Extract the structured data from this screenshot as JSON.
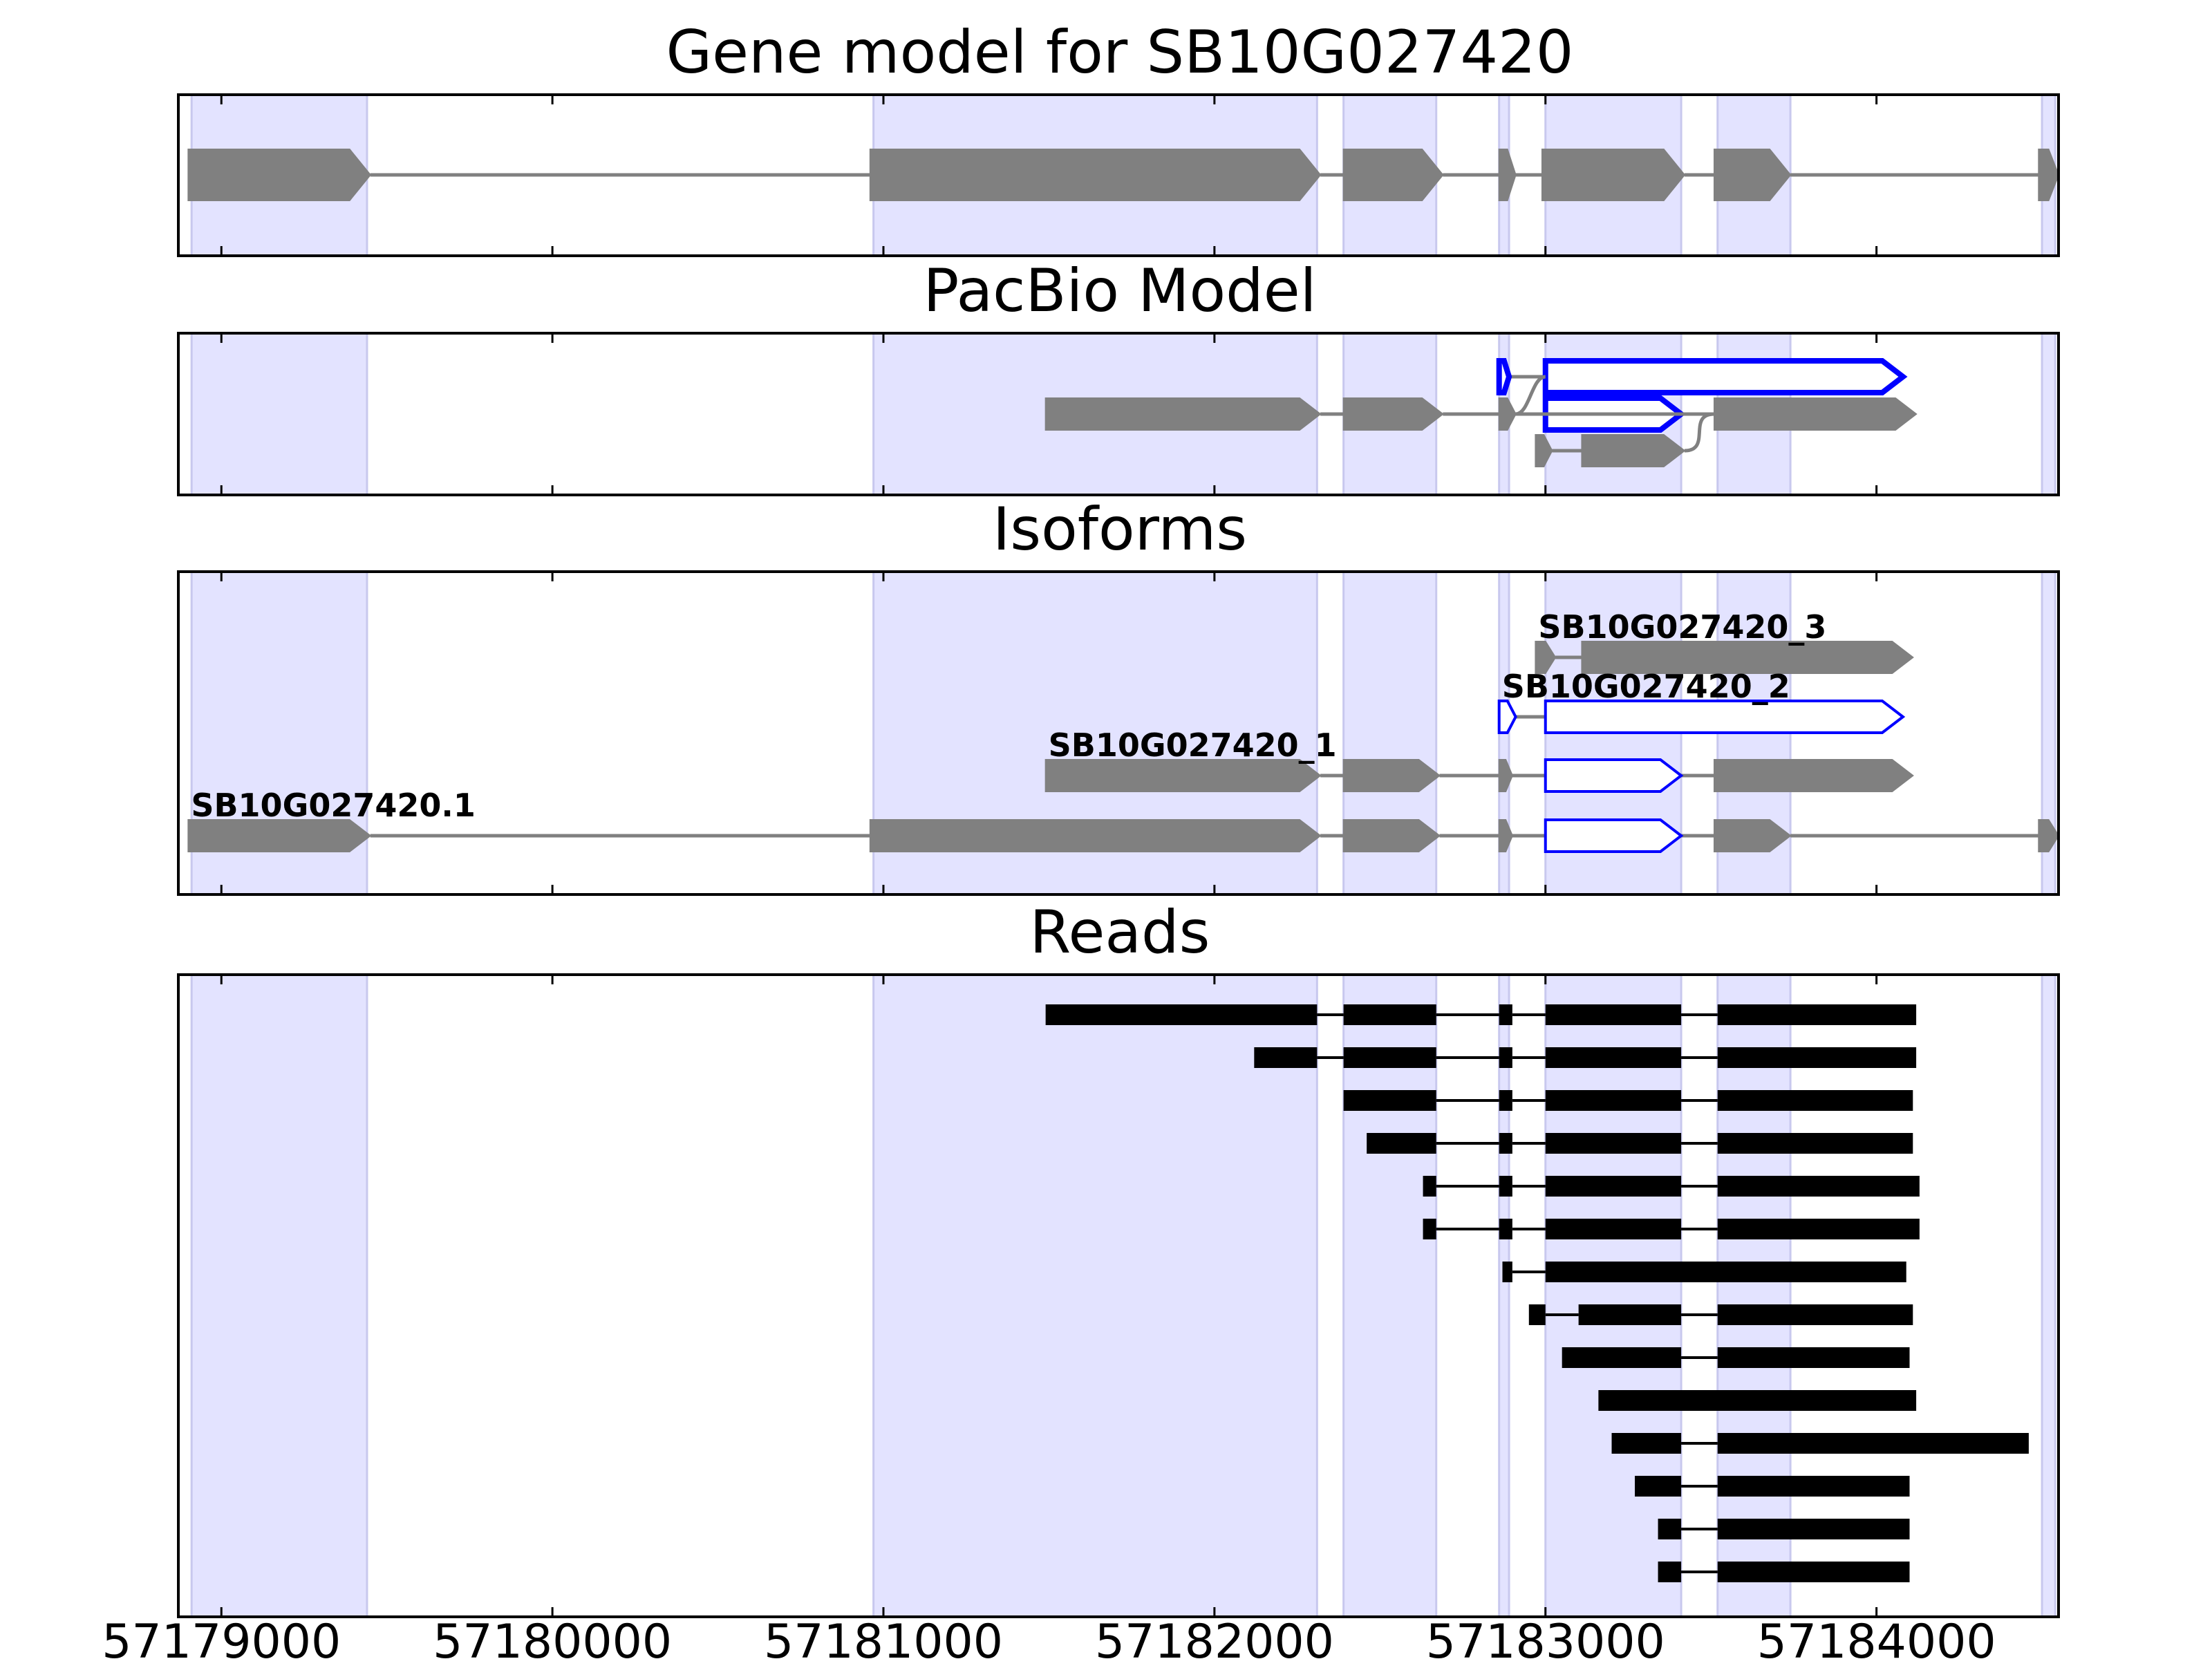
{
  "chart_data": {
    "type": "gene-track",
    "xlim": [
      57178870,
      57184550
    ],
    "x_ticks": [
      57179000,
      57180000,
      57181000,
      57182000,
      57183000,
      57184000
    ],
    "x_tick_labels": [
      "57179000",
      "57180000",
      "57181000",
      "57182000",
      "57183000",
      "57184000"
    ],
    "colors": {
      "shade": "#e3e3ff",
      "gene": "#808080",
      "highlight": "#0000ff",
      "read": "#000000"
    },
    "shaded_regions": [
      [
        57178910,
        57179440
      ],
      [
        57180970,
        57182310
      ],
      [
        57182390,
        57182670
      ],
      [
        57182860,
        57182890
      ],
      [
        57183000,
        57183410
      ],
      [
        57183520,
        57183740
      ],
      [
        57184500,
        57184540
      ]
    ],
    "panels": [
      {
        "title": "Gene model for SB10G027420",
        "rows": [
          {
            "label": "",
            "color": "gray",
            "fill": true,
            "exons": [
              [
                57178900,
                57179450
              ],
              [
                57180960,
                57182320
              ],
              [
                57182390,
                57182690
              ],
              [
                57182860,
                57182910
              ],
              [
                57182990,
                57183420
              ],
              [
                57183510,
                57183740
              ],
              [
                57184490,
                57184550
              ]
            ]
          }
        ]
      },
      {
        "title": "PacBio Model",
        "rows": [
          {
            "label": "",
            "color": "blue",
            "fill": false,
            "junction": "curve",
            "exons": [
              [
                57182860,
                57182890
              ],
              [
                57183000,
                57184080
              ]
            ]
          },
          {
            "label": "",
            "color": "blue",
            "fill": false,
            "exons": [
              [
                57183000,
                57183410
              ]
            ]
          },
          {
            "label": "",
            "color": "gray",
            "fill": true,
            "junction": "curve",
            "exons": [
              [
                57181490,
                57182320
              ],
              [
                57182390,
                57182690
              ],
              [
                57182860,
                57182910
              ],
              [
                57183510,
                57184120
              ]
            ]
          },
          {
            "label": "",
            "color": "gray",
            "fill": true,
            "junction": "curve",
            "exons": [
              [
                57182970,
                57183020
              ],
              [
                57183110,
                57183420
              ]
            ]
          }
        ]
      },
      {
        "title": "Isoforms",
        "rows": [
          {
            "label": "SB10G027420_3",
            "color": "gray",
            "fill": true,
            "exons": [
              [
                57182970,
                57183030
              ],
              [
                57183110,
                57184110
              ]
            ]
          },
          {
            "label": "SB10G027420_2",
            "color": "blue",
            "fill": false,
            "exons": [
              [
                57182860,
                57182910
              ],
              [
                57183000,
                57184080
              ]
            ]
          },
          {
            "label": "SB10G027420_1",
            "color": "mixed",
            "fill": true,
            "exons": [
              [
                57181490,
                57182320
              ],
              [
                57182390,
                57182680
              ],
              [
                57182860,
                57182900
              ],
              [
                57183000,
                57183410
              ],
              [
                57183510,
                57184110
              ]
            ],
            "blue_exons": [
              3
            ]
          },
          {
            "label": "SB10G027420.1",
            "color": "mixed",
            "fill": true,
            "exons": [
              [
                57178900,
                57179450
              ],
              [
                57180960,
                57182320
              ],
              [
                57182390,
                57182680
              ],
              [
                57182860,
                57182900
              ],
              [
                57183000,
                57183410
              ],
              [
                57183510,
                57183740
              ],
              [
                57184490,
                57184550
              ]
            ],
            "blue_exons": [
              4
            ]
          }
        ]
      },
      {
        "title": "Reads",
        "rows": [
          {
            "exons": [
              [
                57181490,
                57182310
              ],
              [
                57182390,
                57182670
              ],
              [
                57182860,
                57182900
              ],
              [
                57183000,
                57183410
              ],
              [
                57183520,
                57184120
              ]
            ]
          },
          {
            "exons": [
              [
                57182120,
                57182310
              ],
              [
                57182390,
                57182670
              ],
              [
                57182860,
                57182900
              ],
              [
                57183000,
                57183410
              ],
              [
                57183520,
                57184120
              ]
            ]
          },
          {
            "exons": [
              [
                57182390,
                57182670
              ],
              [
                57182860,
                57182900
              ],
              [
                57183000,
                57183410
              ],
              [
                57183520,
                57184110
              ]
            ]
          },
          {
            "exons": [
              [
                57182460,
                57182670
              ],
              [
                57182860,
                57182900
              ],
              [
                57183000,
                57183410
              ],
              [
                57183520,
                57184110
              ]
            ]
          },
          {
            "exons": [
              [
                57182630,
                57182670
              ],
              [
                57182860,
                57182900
              ],
              [
                57183000,
                57183410
              ],
              [
                57183520,
                57184130
              ]
            ]
          },
          {
            "exons": [
              [
                57182630,
                57182670
              ],
              [
                57182860,
                57182900
              ],
              [
                57183000,
                57183410
              ],
              [
                57183520,
                57184130
              ]
            ]
          },
          {
            "exons": [
              [
                57182870,
                57182900
              ],
              [
                57183000,
                57184090
              ]
            ]
          },
          {
            "exons": [
              [
                57182950,
                57183000
              ],
              [
                57183100,
                57183410
              ],
              [
                57183520,
                57184110
              ]
            ]
          },
          {
            "exons": [
              [
                57183050,
                57183410
              ],
              [
                57183520,
                57184100
              ]
            ]
          },
          {
            "exons": [
              [
                57183160,
                57184120
              ]
            ]
          },
          {
            "exons": [
              [
                57183200,
                57183410
              ],
              [
                57183520,
                57184460
              ]
            ]
          },
          {
            "exons": [
              [
                57183270,
                57183410
              ],
              [
                57183520,
                57184100
              ]
            ]
          },
          {
            "exons": [
              [
                57183340,
                57183410
              ],
              [
                57183520,
                57184100
              ]
            ]
          },
          {
            "exons": [
              [
                57183340,
                57183410
              ],
              [
                57183520,
                57184100
              ]
            ]
          }
        ]
      }
    ]
  }
}
